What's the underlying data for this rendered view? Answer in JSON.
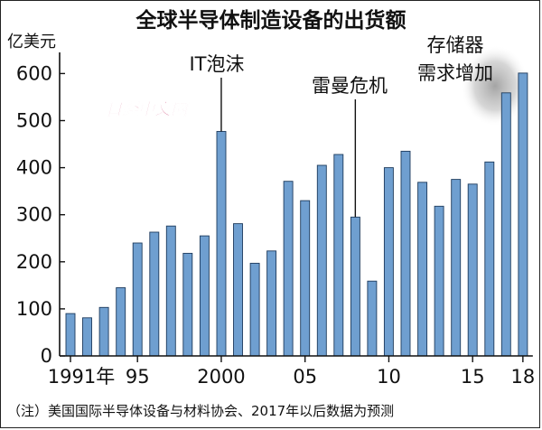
{
  "chart_data": {
    "type": "bar",
    "title": "全球半导体制造设备的出货额",
    "ylabel": "亿美元",
    "ylim": [
      0,
      650
    ],
    "yticks": [
      0,
      100,
      200,
      300,
      400,
      500,
      600
    ],
    "grid": false,
    "bar_color": "#6f9fd0",
    "years": [
      1991,
      1992,
      1993,
      1994,
      1995,
      1996,
      1997,
      1998,
      1999,
      2000,
      2001,
      2002,
      2003,
      2004,
      2005,
      2006,
      2007,
      2008,
      2009,
      2010,
      2011,
      2012,
      2013,
      2014,
      2015,
      2016,
      2017,
      2018
    ],
    "values": [
      90,
      81,
      103,
      145,
      240,
      263,
      276,
      218,
      255,
      477,
      281,
      197,
      223,
      371,
      330,
      405,
      428,
      295,
      159,
      400,
      435,
      369,
      318,
      375,
      365,
      412,
      559,
      601
    ],
    "x_tick_labels": [
      {
        "year": 1991,
        "label": "1991年"
      },
      {
        "year": 1995,
        "label": "95"
      },
      {
        "year": 2000,
        "label": "2000"
      },
      {
        "year": 2005,
        "label": "05"
      },
      {
        "year": 2010,
        "label": "10"
      },
      {
        "year": 2015,
        "label": "15"
      },
      {
        "year": 2018,
        "label": "18"
      }
    ],
    "annotations": [
      {
        "year": 2000,
        "lines": [
          "IT泡沫"
        ]
      },
      {
        "year": 2008,
        "lines": [
          "雷曼危机"
        ]
      },
      {
        "year": 2018,
        "lines": [
          "存储器",
          "需求增加"
        ]
      }
    ],
    "note": "（注）美国国际半导体设备与材料协会、2017年以后数据为预测"
  },
  "watermark": {
    "text": "日经中文网",
    "color": "#c8366b"
  }
}
